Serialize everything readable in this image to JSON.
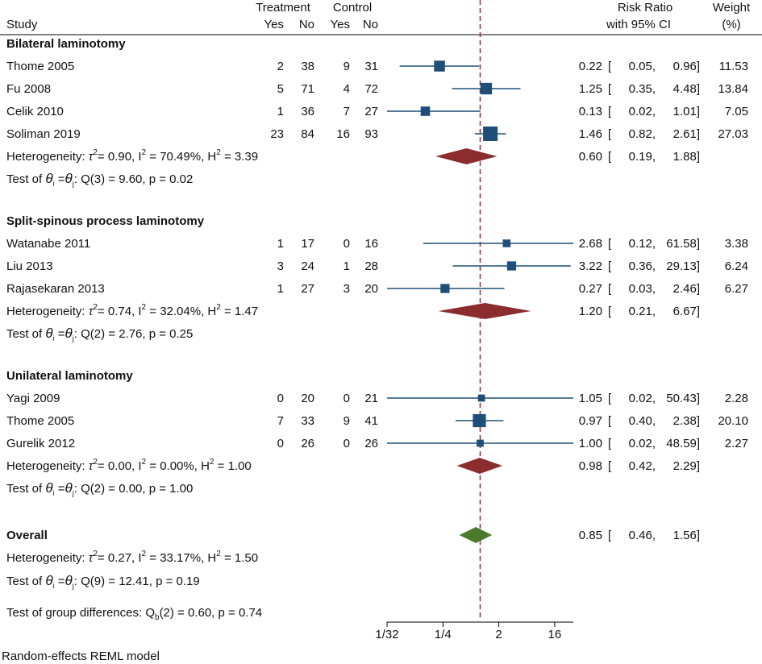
{
  "header": {
    "study": "Study",
    "treatment": "Treatment",
    "control": "Control",
    "yes": "Yes",
    "no": "No",
    "risk_ratio": "Risk Ratio",
    "ci": "with 95% CI",
    "weight": "Weight",
    "weight_unit": "(%)"
  },
  "chart_data": {
    "type": "forest",
    "title": "",
    "scale": "log2",
    "xlim": [
      0.03125,
      32
    ],
    "xticks": [
      {
        "label": "1/32",
        "value": 0.03125
      },
      {
        "label": "1/4",
        "value": 0.25
      },
      {
        "label": "2",
        "value": 2
      },
      {
        "label": "16",
        "value": 16
      }
    ],
    "null_line": 1,
    "groups": [
      {
        "name": "Bilateral laminotomy",
        "studies": [
          {
            "study": "Thome 2005",
            "t_yes": "2",
            "t_no": "38",
            "c_yes": "9",
            "c_no": "31",
            "rr": 0.22,
            "lo": 0.05,
            "hi": 0.96,
            "rr_s": "0.22",
            "lo_s": "0.05,",
            "hi_s": "0.96]",
            "weight": "11.53"
          },
          {
            "study": "Fu 2008",
            "t_yes": "5",
            "t_no": "71",
            "c_yes": "4",
            "c_no": "72",
            "rr": 1.25,
            "lo": 0.35,
            "hi": 4.48,
            "rr_s": "1.25",
            "lo_s": "0.35,",
            "hi_s": "4.48]",
            "weight": "13.84"
          },
          {
            "study": "Celik 2010",
            "t_yes": "1",
            "t_no": "36",
            "c_yes": "7",
            "c_no": "27",
            "rr": 0.13,
            "lo": 0.02,
            "hi": 1.01,
            "rr_s": "0.13",
            "lo_s": "0.02,",
            "hi_s": "1.01]",
            "weight": "7.05"
          },
          {
            "study": "Soliman 2019",
            "t_yes": "23",
            "t_no": "84",
            "c_yes": "16",
            "c_no": "93",
            "rr": 1.46,
            "lo": 0.82,
            "hi": 2.61,
            "rr_s": "1.46",
            "lo_s": "0.82,",
            "hi_s": "2.61]",
            "weight": "27.03"
          }
        ],
        "pooled": {
          "rr": 0.6,
          "lo": 0.19,
          "hi": 1.88,
          "rr_s": "0.60",
          "lo_s": "0.19,",
          "hi_s": "1.88]"
        },
        "het_pre": "Heterogeneity:",
        "het_tau2": "= 0.90, I",
        "het_i2": "= 70.49%, H",
        "het_h2": "= 3.39",
        "test_pre": "Test of",
        "test_stat": ": Q(3) = 9.60, p = 0.02"
      },
      {
        "name": "Split-spinous process laminotomy",
        "studies": [
          {
            "study": "Watanabe 2011",
            "t_yes": "1",
            "t_no": "17",
            "c_yes": "0",
            "c_no": "16",
            "rr": 2.68,
            "lo": 0.12,
            "hi": 61.58,
            "rr_s": "2.68",
            "lo_s": "0.12,",
            "hi_s": "61.58]",
            "weight": "3.38"
          },
          {
            "study": "Liu 2013",
            "t_yes": "3",
            "t_no": "24",
            "c_yes": "1",
            "c_no": "28",
            "rr": 3.22,
            "lo": 0.36,
            "hi": 29.13,
            "rr_s": "3.22",
            "lo_s": "0.36,",
            "hi_s": "29.13]",
            "weight": "6.24"
          },
          {
            "study": "Rajasekaran 2013",
            "t_yes": "1",
            "t_no": "27",
            "c_yes": "3",
            "c_no": "20",
            "rr": 0.27,
            "lo": 0.03,
            "hi": 2.46,
            "rr_s": "0.27",
            "lo_s": "0.03,",
            "hi_s": "2.46]",
            "weight": "6.27"
          }
        ],
        "pooled": {
          "rr": 1.2,
          "lo": 0.21,
          "hi": 6.67,
          "rr_s": "1.20",
          "lo_s": "0.21,",
          "hi_s": "6.67]"
        },
        "het_pre": "Heterogeneity:",
        "het_tau2": "= 0.74, I",
        "het_i2": "= 32.04%, H",
        "het_h2": "= 1.47",
        "test_pre": "Test of",
        "test_stat": ": Q(2) = 2.76, p = 0.25"
      },
      {
        "name": "Unilateral laminotomy",
        "studies": [
          {
            "study": "Yagi 2009",
            "t_yes": "0",
            "t_no": "20",
            "c_yes": "0",
            "c_no": "21",
            "rr": 1.05,
            "lo": 0.02,
            "hi": 50.43,
            "rr_s": "1.05",
            "lo_s": "0.02,",
            "hi_s": "50.43]",
            "weight": "2.28"
          },
          {
            "study": "Thome 2005",
            "t_yes": "7",
            "t_no": "33",
            "c_yes": "9",
            "c_no": "41",
            "rr": 0.97,
            "lo": 0.4,
            "hi": 2.38,
            "rr_s": "0.97",
            "lo_s": "0.40,",
            "hi_s": "2.38]",
            "weight": "20.10"
          },
          {
            "study": "Gurelik 2012",
            "t_yes": "0",
            "t_no": "26",
            "c_yes": "0",
            "c_no": "26",
            "rr": 1.0,
            "lo": 0.02,
            "hi": 48.59,
            "rr_s": "1.00",
            "lo_s": "0.02,",
            "hi_s": "48.59]",
            "weight": "2.27"
          }
        ],
        "pooled": {
          "rr": 0.98,
          "lo": 0.42,
          "hi": 2.29,
          "rr_s": "0.98",
          "lo_s": "0.42,",
          "hi_s": "2.29]"
        },
        "het_pre": "Heterogeneity:",
        "het_tau2": "= 0.00, I",
        "het_i2": "= 0.00%, H",
        "het_h2": "= 1.00",
        "test_pre": "Test of",
        "test_stat": ": Q(2) = 0.00, p = 1.00"
      }
    ],
    "overall": {
      "name": "Overall",
      "rr": 0.85,
      "lo": 0.46,
      "hi": 1.56,
      "rr_s": "0.85",
      "lo_s": "0.46,",
      "hi_s": "1.56]",
      "het_pre": "Heterogeneity:",
      "het_tau2": "= 0.27, I",
      "het_i2": "= 33.17%, H",
      "het_h2": "= 1.50",
      "test_pre": "Test of",
      "test_stat": ": Q(9) = 12.41, p = 0.19",
      "group_test_pre": "Test of group differences: Q",
      "group_test_sub": "b",
      "group_test_stat": "(2) = 0.60, p = 0.74"
    },
    "ci_open": "[",
    "theta": "θ",
    "sub_i": "i",
    "sub_j": "j",
    "eq": "=",
    "tau": "τ",
    "sup2": "2",
    "footnote": "Random-effects REML model"
  },
  "colors": {
    "marker": "#1f4e79",
    "group_diamond": "#8b2c2f",
    "overall_diamond": "#4a7a2a",
    "null_line": "#a0304a",
    "text": "#111111"
  }
}
